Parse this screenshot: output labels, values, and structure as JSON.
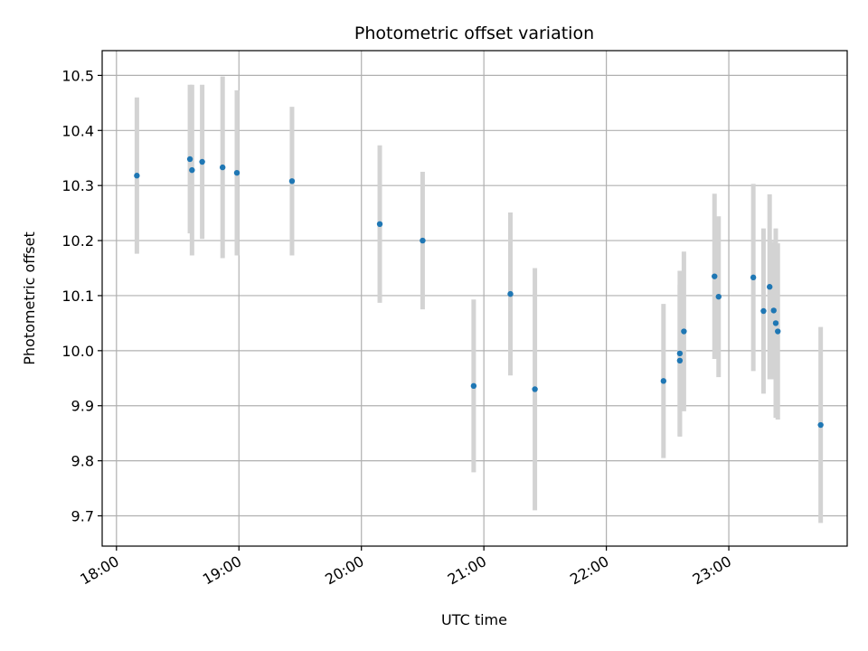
{
  "chart_data": {
    "type": "scatter",
    "title": "Photometric offset variation",
    "xlabel": "UTC time",
    "ylabel": "Photometric offset",
    "x_axis_type": "time",
    "xlim": [
      "17:53",
      "23:58"
    ],
    "ylim": [
      9.645,
      10.545
    ],
    "grid": true,
    "x_ticks": [
      "18:00",
      "19:00",
      "20:00",
      "21:00",
      "22:00",
      "23:00"
    ],
    "y_ticks": [
      "9.7",
      "9.8",
      "9.9",
      "10.0",
      "10.1",
      "10.2",
      "10.3",
      "10.4",
      "10.5"
    ],
    "marker_color": "#1f77b4",
    "errorbar_color": "#d3d3d3",
    "points": [
      {
        "t": "18:10",
        "y": 10.318,
        "err": 0.142
      },
      {
        "t": "18:36",
        "y": 10.348,
        "err": 0.135
      },
      {
        "t": "18:37",
        "y": 10.328,
        "err": 0.155
      },
      {
        "t": "18:42",
        "y": 10.343,
        "err": 0.14
      },
      {
        "t": "18:52",
        "y": 10.333,
        "err": 0.165
      },
      {
        "t": "18:59",
        "y": 10.323,
        "err": 0.15
      },
      {
        "t": "19:26",
        "y": 10.308,
        "err": 0.135
      },
      {
        "t": "20:09",
        "y": 10.23,
        "err": 0.143
      },
      {
        "t": "20:30",
        "y": 10.2,
        "err": 0.125
      },
      {
        "t": "20:55",
        "y": 9.936,
        "err": 0.157
      },
      {
        "t": "21:13",
        "y": 10.103,
        "err": 0.148
      },
      {
        "t": "21:25",
        "y": 9.93,
        "err": 0.22
      },
      {
        "t": "22:28",
        "y": 9.945,
        "err": 0.14
      },
      {
        "t": "22:36",
        "y": 9.995,
        "err": 0.15
      },
      {
        "t": "22:36",
        "y": 9.982,
        "err": 0.138
      },
      {
        "t": "22:38",
        "y": 10.035,
        "err": 0.145
      },
      {
        "t": "22:53",
        "y": 10.135,
        "err": 0.15
      },
      {
        "t": "22:55",
        "y": 10.098,
        "err": 0.146
      },
      {
        "t": "23:12",
        "y": 10.133,
        "err": 0.17
      },
      {
        "t": "23:17",
        "y": 10.072,
        "err": 0.15
      },
      {
        "t": "23:20",
        "y": 10.116,
        "err": 0.168
      },
      {
        "t": "23:22",
        "y": 10.073,
        "err": 0.125
      },
      {
        "t": "23:23",
        "y": 10.05,
        "err": 0.172
      },
      {
        "t": "23:24",
        "y": 10.035,
        "err": 0.16
      },
      {
        "t": "23:45",
        "y": 9.865,
        "err": 0.178
      }
    ]
  }
}
